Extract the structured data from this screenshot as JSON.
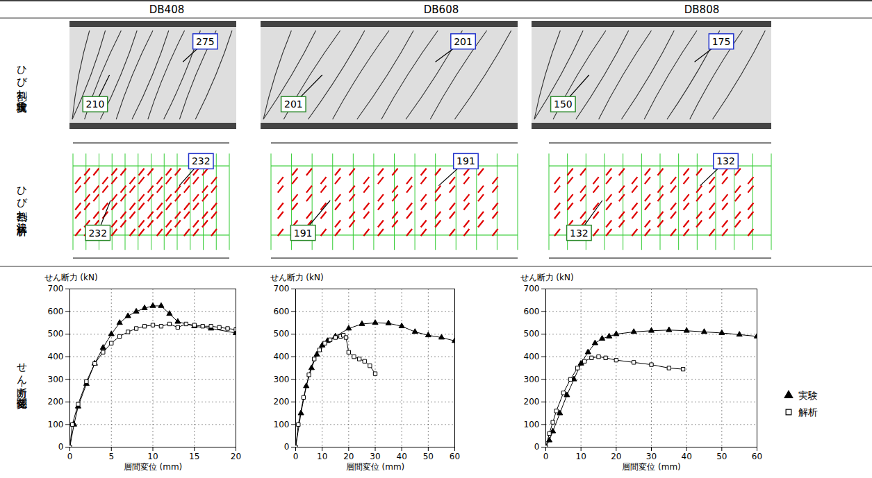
{
  "columns": [
    "DB408",
    "DB608",
    "DB808"
  ],
  "row_labels": [
    "ひび割れ状況（実験）",
    "ひび割れ状況(解析)",
    "せん断力－変位関係"
  ],
  "crack_experiment": [
    [
      210,
      275
    ],
    [
      201,
      201
    ],
    [
      150,
      175
    ]
  ],
  "crack_analysis": [
    [
      232,
      232
    ],
    [
      191,
      191
    ],
    [
      132,
      132
    ]
  ],
  "legend": "right",
  "chart_data": [
    {
      "type": "line",
      "x_label": "層間変位 (mm)",
      "y_label": "せん断力 (kN)",
      "xlim": [
        0,
        20
      ],
      "xticks": [
        0,
        5,
        10,
        15,
        20
      ],
      "ylim": [
        0,
        700
      ],
      "yticks": [
        0,
        100,
        200,
        300,
        400,
        500,
        600,
        700
      ],
      "grid": true,
      "series": [
        {
          "name": "実験",
          "color": "#000000",
          "marker": "triangle",
          "x": [
            0,
            0.5,
            1,
            2,
            3,
            4,
            5,
            6,
            7,
            8,
            9,
            10,
            11,
            12,
            13,
            15,
            17,
            20
          ],
          "values": [
            0,
            100,
            180,
            280,
            370,
            440,
            500,
            550,
            580,
            600,
            615,
            625,
            625,
            590,
            555,
            535,
            525,
            505
          ]
        },
        {
          "name": "解析",
          "color": "#000000",
          "marker": "open_square",
          "x": [
            0,
            0.3,
            1,
            2,
            3,
            4,
            5,
            6,
            7,
            8,
            9,
            10,
            11,
            12,
            13,
            14,
            15,
            16,
            17,
            18,
            19,
            20
          ],
          "values": [
            0,
            100,
            190,
            290,
            370,
            420,
            460,
            490,
            510,
            525,
            535,
            540,
            535,
            545,
            530,
            545,
            540,
            535,
            535,
            530,
            525,
            520
          ]
        }
      ]
    },
    {
      "type": "line",
      "x_label": "層間変位 (mm)",
      "y_label": "せん断力 (kN)",
      "xlim": [
        0,
        60
      ],
      "xticks": [
        0,
        10,
        20,
        30,
        40,
        50,
        60
      ],
      "ylim": [
        0,
        700
      ],
      "yticks": [
        0,
        100,
        200,
        300,
        400,
        500,
        600,
        700
      ],
      "grid": true,
      "series": [
        {
          "name": "実験",
          "color": "#000000",
          "marker": "triangle",
          "x": [
            0,
            2,
            4,
            6,
            8,
            10,
            12,
            15,
            20,
            25,
            30,
            35,
            40,
            45,
            50,
            55,
            60
          ],
          "values": [
            0,
            150,
            270,
            350,
            410,
            450,
            470,
            490,
            525,
            545,
            550,
            548,
            535,
            510,
            495,
            485,
            470
          ]
        },
        {
          "name": "解析",
          "color": "#000000",
          "marker": "open_square",
          "x": [
            0,
            1,
            3,
            5,
            7,
            9,
            11,
            13,
            15,
            17,
            18,
            19,
            20,
            22,
            24,
            26,
            28,
            30
          ],
          "values": [
            0,
            100,
            220,
            320,
            390,
            430,
            460,
            475,
            485,
            490,
            495,
            485,
            420,
            400,
            390,
            380,
            360,
            325
          ]
        }
      ]
    },
    {
      "type": "line",
      "x_label": "層間変位 (mm)",
      "y_label": "せん断力 (kN)",
      "xlim": [
        0,
        60
      ],
      "xticks": [
        0,
        10,
        20,
        30,
        40,
        50,
        60
      ],
      "ylim": [
        0,
        700
      ],
      "yticks": [
        0,
        100,
        200,
        300,
        400,
        500,
        600,
        700
      ],
      "grid": true,
      "series": [
        {
          "name": "実験",
          "color": "#000000",
          "marker": "triangle",
          "x": [
            0,
            1,
            2,
            4,
            6,
            8,
            10,
            12,
            14,
            16,
            18,
            20,
            25,
            30,
            35,
            40,
            45,
            50,
            55,
            60
          ],
          "values": [
            0,
            30,
            70,
            150,
            230,
            300,
            370,
            420,
            460,
            480,
            490,
            500,
            510,
            515,
            518,
            515,
            510,
            505,
            498,
            490
          ]
        },
        {
          "name": "解析",
          "color": "#000000",
          "marker": "open_square",
          "x": [
            0,
            1,
            2,
            3,
            5,
            7,
            9,
            11,
            13,
            15,
            17,
            20,
            25,
            30,
            35,
            39
          ],
          "values": [
            0,
            60,
            110,
            160,
            240,
            300,
            350,
            380,
            395,
            400,
            395,
            385,
            375,
            365,
            350,
            345
          ]
        }
      ]
    }
  ]
}
